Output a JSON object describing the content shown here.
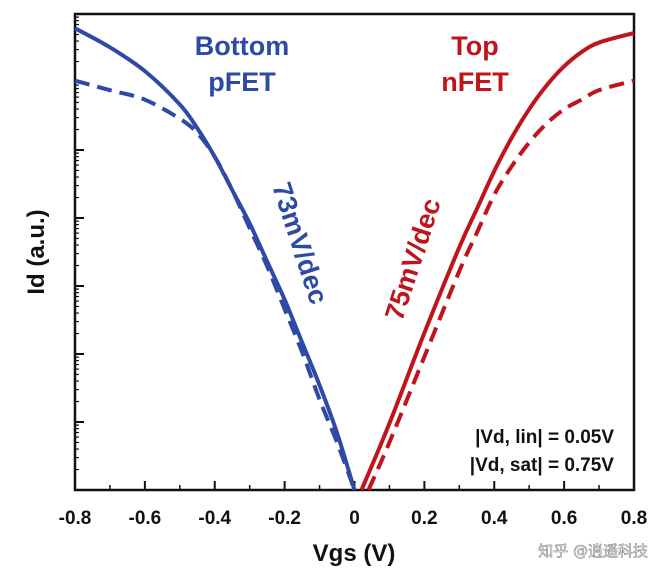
{
  "chart_data": {
    "type": "line",
    "xlabel": "Vgs (V)",
    "ylabel": "Id (a.u.)",
    "xlim": [
      -0.8,
      0.8
    ],
    "xticks": [
      "-0.8",
      "-0.6",
      "-0.4",
      "-0.2",
      "0",
      "0.2",
      "0.4",
      "0.6",
      "0.8"
    ],
    "y_scale": "log",
    "y_tick_labels": "none",
    "series": [
      {
        "device": "pFET",
        "condition": "linear",
        "style": "solid",
        "color": "#2e4aa6",
        "x": [
          -0.8,
          -0.7,
          -0.6,
          -0.5,
          -0.45,
          -0.4,
          -0.35,
          -0.3,
          -0.25,
          -0.2,
          -0.15,
          -0.1,
          -0.05,
          0.0
        ],
        "y_rel": [
          0.97,
          0.93,
          0.88,
          0.81,
          0.76,
          0.7,
          0.63,
          0.56,
          0.48,
          0.4,
          0.31,
          0.22,
          0.12,
          0.0
        ]
      },
      {
        "device": "pFET",
        "condition": "saturation",
        "style": "dashed",
        "color": "#2e4aa6",
        "x": [
          -0.8,
          -0.7,
          -0.6,
          -0.5,
          -0.45,
          -0.4,
          -0.35,
          -0.3,
          -0.25,
          -0.2,
          -0.15,
          -0.1,
          -0.05,
          0.0
        ],
        "y_rel": [
          0.86,
          0.84,
          0.82,
          0.78,
          0.75,
          0.7,
          0.63,
          0.55,
          0.47,
          0.38,
          0.29,
          0.19,
          0.1,
          0.0
        ]
      },
      {
        "device": "nFET",
        "condition": "linear",
        "style": "solid",
        "color": "#c0141c",
        "x": [
          0.02,
          0.1,
          0.2,
          0.3,
          0.35,
          0.4,
          0.45,
          0.5,
          0.55,
          0.6,
          0.65,
          0.7,
          0.8
        ],
        "y_rel": [
          0.0,
          0.14,
          0.33,
          0.51,
          0.59,
          0.67,
          0.74,
          0.8,
          0.85,
          0.89,
          0.92,
          0.94,
          0.96
        ]
      },
      {
        "device": "nFET",
        "condition": "saturation",
        "style": "dashed",
        "color": "#c0141c",
        "x": [
          0.04,
          0.1,
          0.2,
          0.3,
          0.35,
          0.4,
          0.45,
          0.5,
          0.55,
          0.6,
          0.65,
          0.7,
          0.8
        ],
        "y_rel": [
          0.0,
          0.1,
          0.28,
          0.46,
          0.54,
          0.62,
          0.68,
          0.73,
          0.77,
          0.8,
          0.82,
          0.84,
          0.86
        ]
      }
    ],
    "annotations": {
      "bottom_label_line1": "Bottom",
      "bottom_label_line2": "pFET",
      "top_label_line1": "Top",
      "top_label_line2": "nFET",
      "p_slope": "73mV/dec",
      "n_slope": "75mV/dec",
      "vd_lin": "|Vd, lin| = 0.05V",
      "vd_sat": "|Vd, sat| = 0.75V"
    },
    "grid": false,
    "legend": "none"
  },
  "watermark": "知乎 @逍遥科技",
  "colors": {
    "pfet": "#2e4aa6",
    "nfet": "#c0141c",
    "axis": "#111111"
  }
}
